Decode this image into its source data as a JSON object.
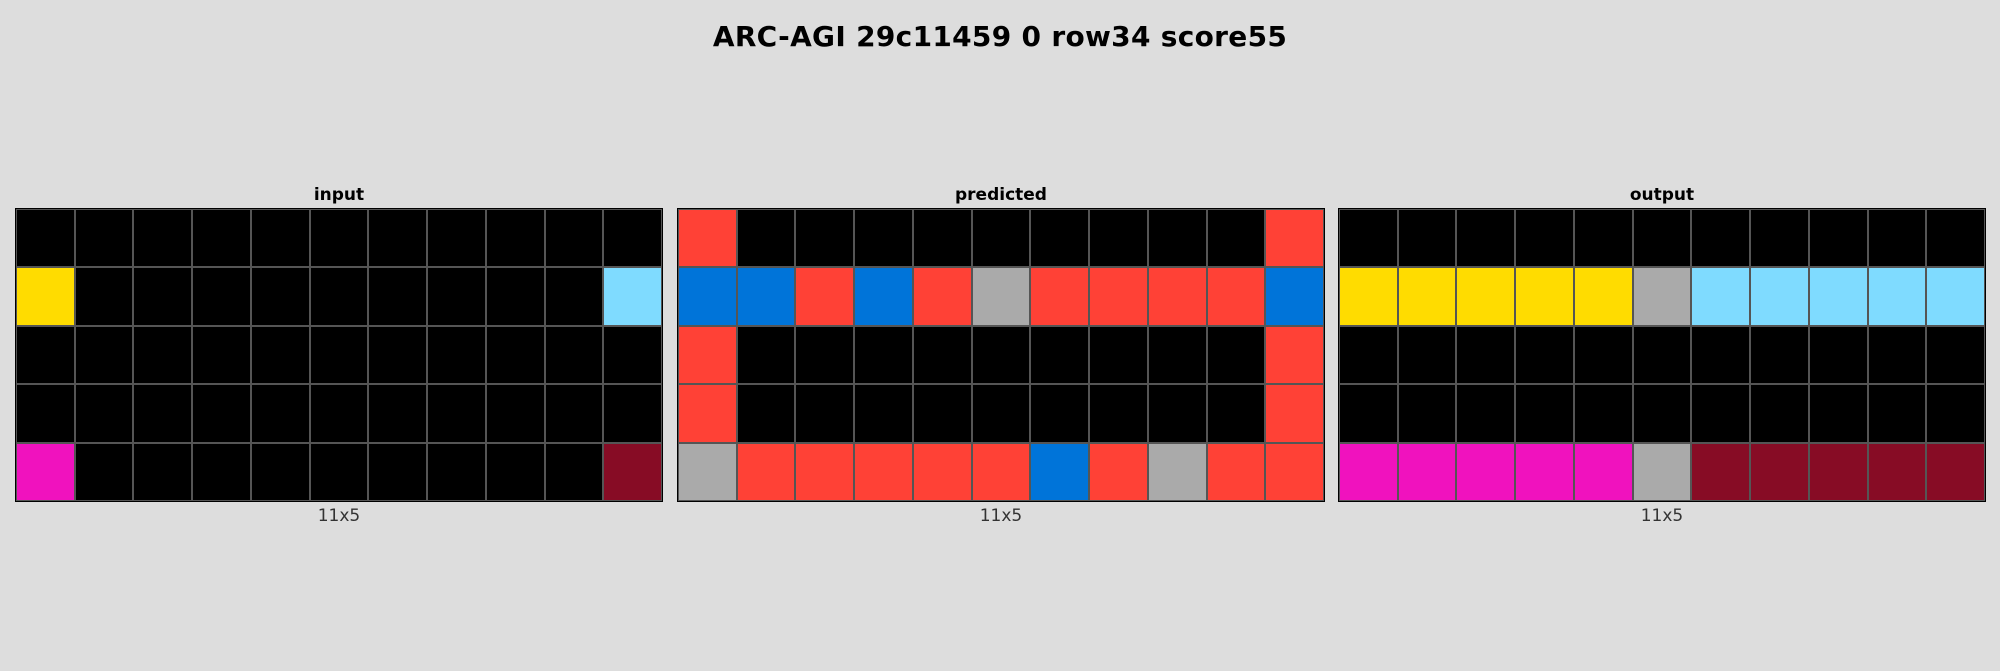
{
  "title": "ARC-AGI 29c11459 0 row34 score55",
  "palette": {
    "0": "#000000",
    "1": "#0074d9",
    "2": "#ff4136",
    "4": "#ffdc00",
    "5": "#aaaaaa",
    "6": "#f012be",
    "8": "#7fdbff",
    "9": "#870c25"
  },
  "panels": {
    "input": {
      "label": "input",
      "size": "11x5",
      "grid": [
        [
          0,
          0,
          0,
          0,
          0,
          0,
          0,
          0,
          0,
          0,
          0
        ],
        [
          4,
          0,
          0,
          0,
          0,
          0,
          0,
          0,
          0,
          0,
          8
        ],
        [
          0,
          0,
          0,
          0,
          0,
          0,
          0,
          0,
          0,
          0,
          0
        ],
        [
          0,
          0,
          0,
          0,
          0,
          0,
          0,
          0,
          0,
          0,
          0
        ],
        [
          6,
          0,
          0,
          0,
          0,
          0,
          0,
          0,
          0,
          0,
          9
        ]
      ]
    },
    "predicted": {
      "label": "predicted",
      "size": "11x5",
      "grid": [
        [
          2,
          0,
          0,
          0,
          0,
          0,
          0,
          0,
          0,
          0,
          2
        ],
        [
          1,
          1,
          2,
          1,
          2,
          5,
          2,
          2,
          2,
          2,
          1
        ],
        [
          2,
          0,
          0,
          0,
          0,
          0,
          0,
          0,
          0,
          0,
          2
        ],
        [
          2,
          0,
          0,
          0,
          0,
          0,
          0,
          0,
          0,
          0,
          2
        ],
        [
          5,
          2,
          2,
          2,
          2,
          2,
          1,
          2,
          5,
          2,
          2
        ]
      ]
    },
    "output": {
      "label": "output",
      "size": "11x5",
      "grid": [
        [
          0,
          0,
          0,
          0,
          0,
          0,
          0,
          0,
          0,
          0,
          0
        ],
        [
          4,
          4,
          4,
          4,
          4,
          5,
          8,
          8,
          8,
          8,
          8
        ],
        [
          0,
          0,
          0,
          0,
          0,
          0,
          0,
          0,
          0,
          0,
          0
        ],
        [
          0,
          0,
          0,
          0,
          0,
          0,
          0,
          0,
          0,
          0,
          0
        ],
        [
          6,
          6,
          6,
          6,
          6,
          5,
          9,
          9,
          9,
          9,
          9
        ]
      ]
    }
  }
}
